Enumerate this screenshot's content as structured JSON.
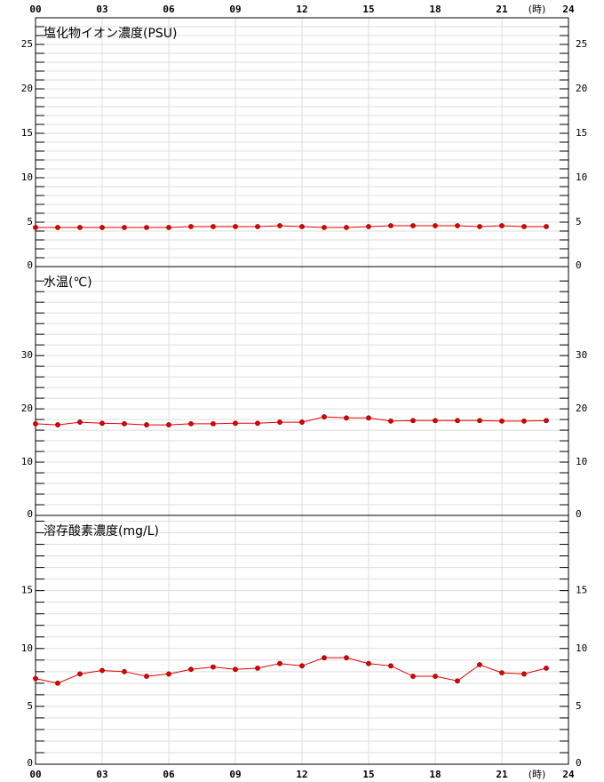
{
  "chart_data": [
    {
      "type": "line",
      "title": "塩化物イオン濃度(PSU)",
      "color": "#e00000",
      "grid": true,
      "xtick_labels": "top",
      "x": [
        0,
        1,
        2,
        3,
        4,
        5,
        6,
        7,
        8,
        9,
        10,
        11,
        12,
        13,
        14,
        15,
        16,
        17,
        18,
        19,
        20,
        21,
        22,
        23
      ],
      "values": [
        4.4,
        4.4,
        4.4,
        4.4,
        4.4,
        4.4,
        4.4,
        4.5,
        4.5,
        4.5,
        4.5,
        4.6,
        4.5,
        4.4,
        4.4,
        4.5,
        4.6,
        4.6,
        4.6,
        4.6,
        4.5,
        4.6,
        4.5,
        4.5
      ],
      "xlim": [
        0,
        24
      ],
      "x_unit": "(時)",
      "xticks": [
        {
          "value": 0,
          "label": "00"
        },
        {
          "value": 3,
          "label": "03"
        },
        {
          "value": 6,
          "label": "06"
        },
        {
          "value": 9,
          "label": "09"
        },
        {
          "value": 12,
          "label": "12"
        },
        {
          "value": 15,
          "label": "15"
        },
        {
          "value": 18,
          "label": "18"
        },
        {
          "value": 21,
          "label": "21"
        },
        {
          "value": 24,
          "label": "24"
        }
      ],
      "ylim": [
        0,
        28
      ],
      "yticks": [
        0,
        5,
        10,
        15,
        20,
        25
      ],
      "minor_yticks": [
        1,
        2,
        3,
        4,
        6,
        7,
        8,
        9,
        11,
        12,
        13,
        14,
        16,
        17,
        18,
        19,
        21,
        22,
        23,
        24,
        26,
        27
      ]
    },
    {
      "type": "line",
      "title": "水温(℃)",
      "color": "#e00000",
      "grid": true,
      "xtick_labels": "none",
      "x": [
        0,
        1,
        2,
        3,
        4,
        5,
        6,
        7,
        8,
        9,
        10,
        11,
        12,
        13,
        14,
        15,
        16,
        17,
        18,
        19,
        20,
        21,
        22,
        23
      ],
      "values": [
        17.2,
        17.0,
        17.5,
        17.3,
        17.2,
        17.0,
        17.0,
        17.2,
        17.2,
        17.3,
        17.3,
        17.5,
        17.5,
        18.5,
        18.3,
        18.3,
        17.7,
        17.8,
        17.8,
        17.8,
        17.8,
        17.7,
        17.7,
        17.8
      ],
      "xlim": [
        0,
        24
      ],
      "xticks": [
        0,
        3,
        6,
        9,
        12,
        15,
        18,
        21,
        24
      ],
      "ylim": [
        0,
        46.7
      ],
      "yticks": [
        0,
        10,
        20,
        30
      ],
      "minor_yticks": [
        2,
        4,
        6,
        8,
        12,
        14,
        16,
        18,
        22,
        24,
        26,
        28,
        32,
        34,
        36,
        38,
        40,
        42,
        44
      ]
    },
    {
      "type": "line",
      "title": "溶存酸素濃度(mg/L)",
      "color": "#e00000",
      "grid": true,
      "xtick_labels": "bottom",
      "x": [
        0,
        1,
        2,
        3,
        4,
        5,
        6,
        7,
        8,
        9,
        10,
        11,
        12,
        13,
        14,
        15,
        16,
        17,
        18,
        19,
        20,
        21,
        22,
        23
      ],
      "values": [
        7.4,
        7.0,
        7.8,
        8.1,
        8.0,
        7.6,
        7.8,
        8.2,
        8.4,
        8.2,
        8.3,
        8.7,
        8.5,
        9.2,
        9.2,
        8.7,
        8.5,
        7.6,
        7.6,
        7.2,
        8.6,
        7.9,
        7.8,
        8.3
      ],
      "xlim": [
        0,
        24
      ],
      "x_unit": "(時)",
      "xticks": [
        {
          "value": 0,
          "label": "00"
        },
        {
          "value": 3,
          "label": "03"
        },
        {
          "value": 6,
          "label": "06"
        },
        {
          "value": 9,
          "label": "09"
        },
        {
          "value": 12,
          "label": "12"
        },
        {
          "value": 15,
          "label": "15"
        },
        {
          "value": 18,
          "label": "18"
        },
        {
          "value": 21,
          "label": "21"
        },
        {
          "value": 24,
          "label": "24"
        }
      ],
      "ylim": [
        0,
        21.5
      ],
      "yticks": [
        0,
        5,
        10,
        15
      ],
      "minor_yticks": [
        1,
        2,
        3,
        4,
        6,
        7,
        8,
        9,
        11,
        12,
        13,
        14,
        16,
        17,
        18,
        19,
        20,
        21
      ]
    }
  ]
}
